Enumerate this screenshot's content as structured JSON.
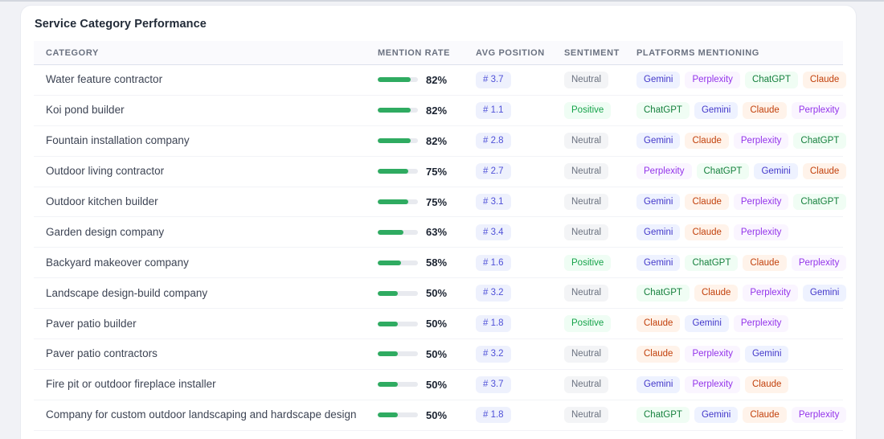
{
  "card": {
    "title": "Service Category Performance"
  },
  "table": {
    "columns": [
      "Category",
      "Mention Rate",
      "Avg Position",
      "Sentiment",
      "Platforms Mentioning"
    ],
    "rows": [
      {
        "category": "Water feature contractor",
        "mention_rate_pct": 82,
        "mention_rate_label": "82%",
        "avg_position": "# 3.7",
        "sentiment": "Neutral",
        "platforms": [
          "Gemini",
          "Perplexity",
          "ChatGPT",
          "Claude"
        ]
      },
      {
        "category": "Koi pond builder",
        "mention_rate_pct": 82,
        "mention_rate_label": "82%",
        "avg_position": "# 1.1",
        "sentiment": "Positive",
        "platforms": [
          "ChatGPT",
          "Gemini",
          "Claude",
          "Perplexity"
        ]
      },
      {
        "category": "Fountain installation company",
        "mention_rate_pct": 82,
        "mention_rate_label": "82%",
        "avg_position": "# 2.8",
        "sentiment": "Neutral",
        "platforms": [
          "Gemini",
          "Claude",
          "Perplexity",
          "ChatGPT"
        ]
      },
      {
        "category": "Outdoor living contractor",
        "mention_rate_pct": 75,
        "mention_rate_label": "75%",
        "avg_position": "# 2.7",
        "sentiment": "Neutral",
        "platforms": [
          "Perplexity",
          "ChatGPT",
          "Gemini",
          "Claude"
        ]
      },
      {
        "category": "Outdoor kitchen builder",
        "mention_rate_pct": 75,
        "mention_rate_label": "75%",
        "avg_position": "# 3.1",
        "sentiment": "Neutral",
        "platforms": [
          "Gemini",
          "Claude",
          "Perplexity",
          "ChatGPT"
        ]
      },
      {
        "category": "Garden design company",
        "mention_rate_pct": 63,
        "mention_rate_label": "63%",
        "avg_position": "# 3.4",
        "sentiment": "Neutral",
        "platforms": [
          "Gemini",
          "Claude",
          "Perplexity"
        ]
      },
      {
        "category": "Backyard makeover company",
        "mention_rate_pct": 58,
        "mention_rate_label": "58%",
        "avg_position": "# 1.6",
        "sentiment": "Positive",
        "platforms": [
          "Gemini",
          "ChatGPT",
          "Claude",
          "Perplexity"
        ]
      },
      {
        "category": "Landscape design-build company",
        "mention_rate_pct": 50,
        "mention_rate_label": "50%",
        "avg_position": "# 3.2",
        "sentiment": "Neutral",
        "platforms": [
          "ChatGPT",
          "Claude",
          "Perplexity",
          "Gemini"
        ]
      },
      {
        "category": "Paver patio builder",
        "mention_rate_pct": 50,
        "mention_rate_label": "50%",
        "avg_position": "# 1.8",
        "sentiment": "Positive",
        "platforms": [
          "Claude",
          "Gemini",
          "Perplexity"
        ]
      },
      {
        "category": "Paver patio contractors",
        "mention_rate_pct": 50,
        "mention_rate_label": "50%",
        "avg_position": "# 3.2",
        "sentiment": "Neutral",
        "platforms": [
          "Claude",
          "Perplexity",
          "Gemini"
        ]
      },
      {
        "category": "Fire pit or outdoor fireplace installer",
        "mention_rate_pct": 50,
        "mention_rate_label": "50%",
        "avg_position": "# 3.7",
        "sentiment": "Neutral",
        "platforms": [
          "Gemini",
          "Perplexity",
          "Claude"
        ]
      },
      {
        "category": "Company for custom outdoor landscaping and hardscape design",
        "mention_rate_pct": 50,
        "mention_rate_label": "50%",
        "avg_position": "# 1.8",
        "sentiment": "Neutral",
        "platforms": [
          "ChatGPT",
          "Gemini",
          "Claude",
          "Perplexity"
        ]
      }
    ]
  },
  "colors": {
    "bar_fill": "#2fab61",
    "bar_track": "#e8eaef",
    "avg_position": {
      "bg": "#eef1fd",
      "fg": "#4f51d8"
    },
    "sentiments": {
      "Neutral": {
        "bg": "#f3f4f6",
        "fg": "#6b7280"
      },
      "Positive": {
        "bg": "#effdf4",
        "fg": "#16a34a"
      }
    },
    "platforms": {
      "ChatGPT": {
        "bg": "#f0fdf4",
        "fg": "#15803d"
      },
      "Gemini": {
        "bg": "#eef2ff",
        "fg": "#4338ca"
      },
      "Claude": {
        "bg": "#fff3ea",
        "fg": "#c2410c"
      },
      "Perplexity": {
        "bg": "#faf5ff",
        "fg": "#9333ea"
      }
    }
  }
}
